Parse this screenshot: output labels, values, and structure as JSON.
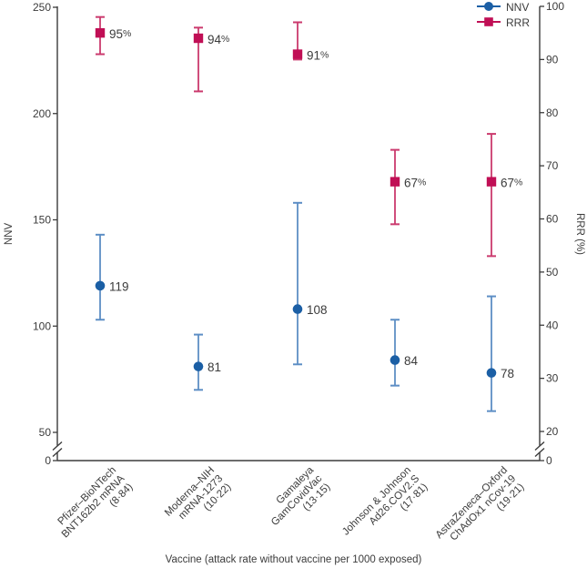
{
  "colors": {
    "nnv_marker": "#1b5fa5",
    "nnv_errorbar": "#5d8ec5",
    "rrr_marker": "#c00f55",
    "rrr_errorbar": "#cb3a6e",
    "axis": "#3b3b3b",
    "text": "#3b3b3b",
    "background": "#ffffff"
  },
  "legend": {
    "items": [
      {
        "label": "NNV",
        "marker": "circle-on-line",
        "color": "#1b5fa5"
      },
      {
        "label": "RRR",
        "marker": "square-on-line",
        "color": "#c00f55"
      }
    ],
    "position": "top-right"
  },
  "chart_data": {
    "type": "scatter",
    "title": "",
    "xlabel": "Vaccine (attack rate without vaccine per 1000 exposed)",
    "grid": false,
    "categories": [
      {
        "lines": [
          "Pfizer–BioNTech",
          "BNT162b2 mRNA",
          "(8·84)"
        ]
      },
      {
        "lines": [
          "Moderna–NIH",
          "mRNA-1273",
          "(10·22)"
        ]
      },
      {
        "lines": [
          "Gamaleya",
          "GamCovidVac",
          "(13·15)"
        ]
      },
      {
        "lines": [
          "Johnson & Johnson",
          "Ad26.COV2.S",
          "(17·81)"
        ]
      },
      {
        "lines": [
          "AstraZeneca–Oxford",
          "ChAdOx1 nCov-19",
          "(19·21)"
        ]
      }
    ],
    "left_axis": {
      "label": "NNV",
      "ticks": [
        250,
        200,
        150,
        100,
        50,
        0
      ],
      "range": [
        0,
        250
      ],
      "break_between": [
        0,
        50
      ]
    },
    "right_axis": {
      "label": "RRR (%)",
      "ticks": [
        100,
        90,
        80,
        70,
        60,
        50,
        40,
        30,
        20,
        0
      ],
      "range": [
        0,
        100
      ],
      "break_between": [
        0,
        20
      ]
    },
    "series": [
      {
        "name": "NNV",
        "axis": "left",
        "marker": "circle",
        "marker_color": "#1b5fa5",
        "errorbar_color": "#5d8ec5",
        "values": [
          119,
          81,
          108,
          84,
          78
        ],
        "ci_low": [
          103,
          70,
          82,
          72,
          60
        ],
        "ci_high": [
          143,
          96,
          158,
          103,
          114
        ],
        "point_labels": [
          "119",
          "81",
          "108",
          "84",
          "78"
        ]
      },
      {
        "name": "RRR",
        "axis": "right",
        "marker": "square",
        "marker_color": "#c00f55",
        "errorbar_color": "#cb3a6e",
        "values": [
          95,
          94,
          91,
          67,
          67
        ],
        "ci_low": [
          91,
          84,
          90,
          59,
          53
        ],
        "ci_high": [
          98,
          96,
          97,
          73,
          76
        ],
        "point_labels": [
          "95%",
          "94%",
          "91%",
          "67%",
          "67%"
        ]
      }
    ]
  }
}
